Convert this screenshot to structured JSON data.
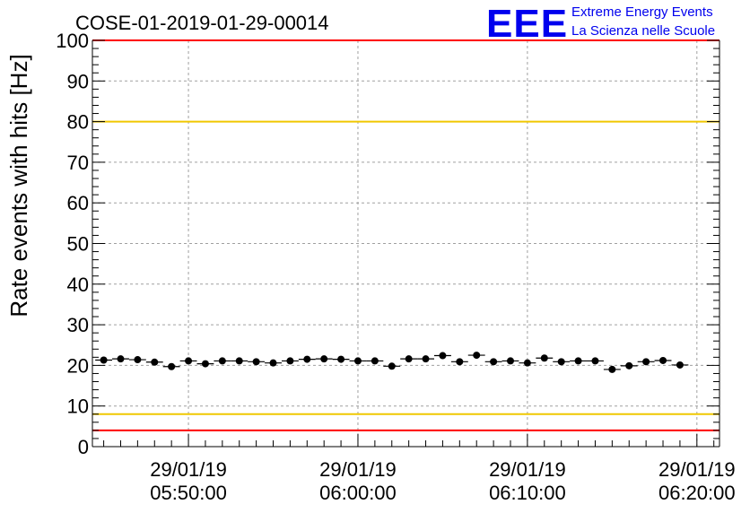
{
  "logo": {
    "mark": "EEE",
    "line1": "Extreme Energy Events",
    "line2": "La Scienza nelle Scuole"
  },
  "chart_data": {
    "type": "scatter",
    "title": "COSE-01-2019-01-29-00014",
    "ylabel": "Rate events with hits [Hz]",
    "xlabel": "",
    "ylim": [
      0,
      100
    ],
    "yticks": [
      0,
      10,
      20,
      30,
      40,
      50,
      60,
      70,
      80,
      90,
      100
    ],
    "x_axis": {
      "type": "time",
      "range": [
        "29/01/19 05:44:20",
        "29/01/19 06:21:20"
      ],
      "ticks": [
        {
          "time": "05:50:00",
          "date_label": "29/01/19",
          "time_label": "05:50:00"
        },
        {
          "time": "06:00:00",
          "date_label": "29/01/19",
          "time_label": "06:00:00"
        },
        {
          "time": "06:10:00",
          "date_label": "29/01/19",
          "time_label": "06:10:00"
        },
        {
          "time": "06:20:00",
          "date_label": "29/01/19",
          "time_label": "06:20:00"
        }
      ]
    },
    "grid": true,
    "reference_lines": [
      {
        "y": 4,
        "color": "#ff0000"
      },
      {
        "y": 8,
        "color": "#f0c800"
      },
      {
        "y": 80,
        "color": "#f0c800"
      },
      {
        "y": 100,
        "color": "#ff0000"
      }
    ],
    "series": [
      {
        "marker_color": "#000000",
        "points": [
          {
            "x": "05:45:00",
            "y": 21.3
          },
          {
            "x": "05:46:00",
            "y": 21.6
          },
          {
            "x": "05:47:00",
            "y": 21.4
          },
          {
            "x": "05:48:00",
            "y": 20.8
          },
          {
            "x": "05:49:00",
            "y": 19.7
          },
          {
            "x": "05:50:00",
            "y": 21.1
          },
          {
            "x": "05:51:00",
            "y": 20.4
          },
          {
            "x": "05:52:00",
            "y": 21.1
          },
          {
            "x": "05:53:00",
            "y": 21.1
          },
          {
            "x": "05:54:00",
            "y": 20.9
          },
          {
            "x": "05:55:00",
            "y": 20.6
          },
          {
            "x": "05:56:00",
            "y": 21.1
          },
          {
            "x": "05:57:00",
            "y": 21.5
          },
          {
            "x": "05:58:00",
            "y": 21.6
          },
          {
            "x": "05:59:00",
            "y": 21.5
          },
          {
            "x": "06:00:00",
            "y": 21.1
          },
          {
            "x": "06:01:00",
            "y": 21.1
          },
          {
            "x": "06:02:00",
            "y": 19.8
          },
          {
            "x": "06:03:00",
            "y": 21.6
          },
          {
            "x": "06:04:00",
            "y": 21.6
          },
          {
            "x": "06:05:00",
            "y": 22.4
          },
          {
            "x": "06:06:00",
            "y": 20.9
          },
          {
            "x": "06:07:00",
            "y": 22.5
          },
          {
            "x": "06:08:00",
            "y": 20.9
          },
          {
            "x": "06:09:00",
            "y": 21.1
          },
          {
            "x": "06:10:00",
            "y": 20.6
          },
          {
            "x": "06:11:00",
            "y": 21.8
          },
          {
            "x": "06:12:00",
            "y": 20.9
          },
          {
            "x": "06:13:00",
            "y": 21.1
          },
          {
            "x": "06:14:00",
            "y": 21.1
          },
          {
            "x": "06:15:00",
            "y": 19.0
          },
          {
            "x": "06:16:00",
            "y": 19.9
          },
          {
            "x": "06:17:00",
            "y": 20.9
          },
          {
            "x": "06:18:00",
            "y": 21.2
          },
          {
            "x": "06:19:00",
            "y": 20.1
          }
        ]
      }
    ]
  }
}
